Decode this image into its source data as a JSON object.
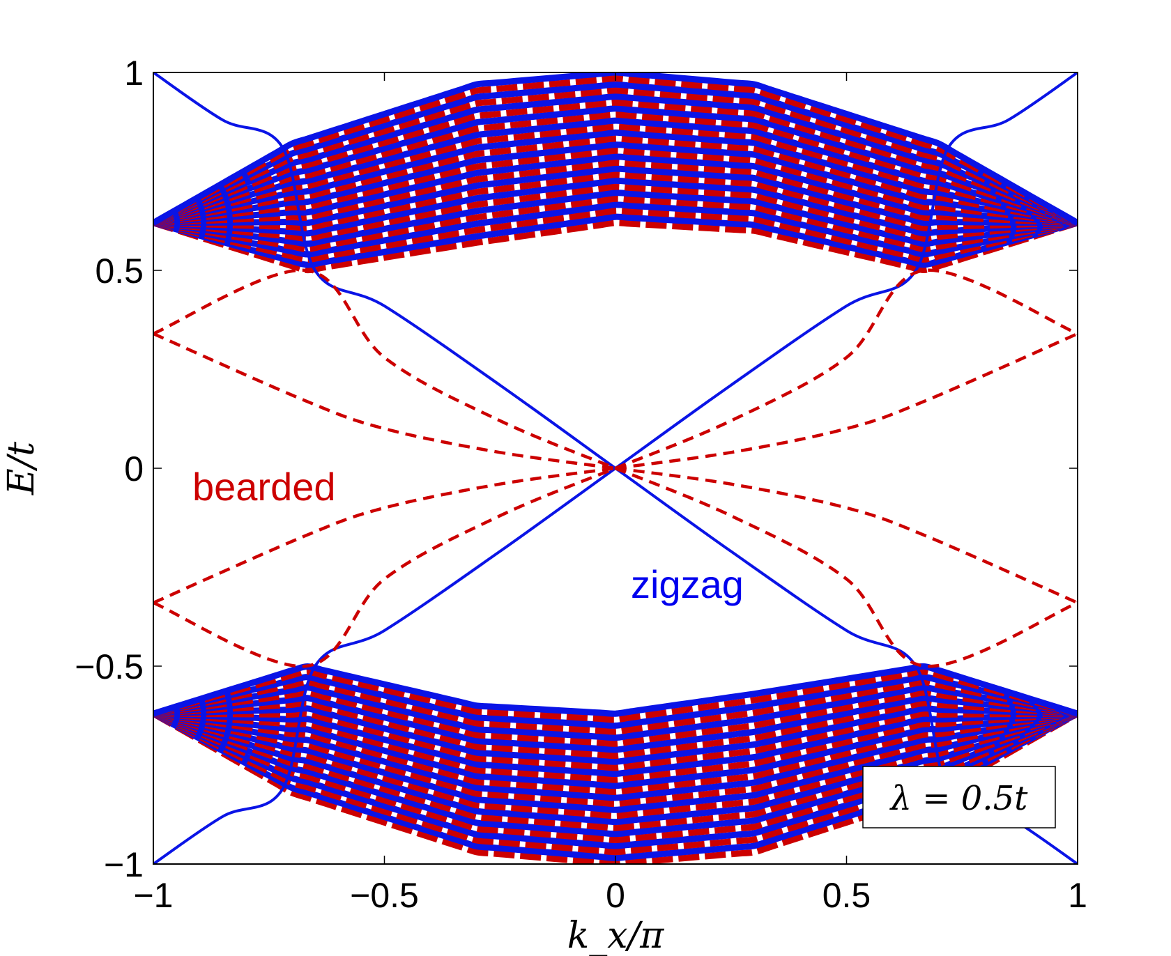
{
  "chart_data": {
    "type": "line",
    "title": "",
    "xlabel": "k_x/π",
    "ylabel": "E/t",
    "xlim": [
      -1,
      1
    ],
    "ylim": [
      -1,
      1
    ],
    "xticks": [
      -1,
      -0.5,
      0,
      0.5,
      1
    ],
    "yticks": [
      -1,
      -0.5,
      0,
      0.5,
      1
    ],
    "xtick_labels": [
      "−1",
      "−0.5",
      "0",
      "0.5",
      "1"
    ],
    "ytick_labels": [
      "−1",
      "−0.5",
      "0",
      "0.5",
      "1"
    ],
    "parameter_label": "λ = 0.5t",
    "annotations": [
      {
        "text": "bearded",
        "color": "#cc0000"
      },
      {
        "text": "zigzag",
        "color": "#0000ee"
      }
    ],
    "colors": {
      "zigzag": "#0a14e6",
      "bearded": "#cc0000"
    },
    "bulk_bands": {
      "upper": {
        "top_edge": [
          [
            -1,
            0.62
          ],
          [
            -0.7,
            0.82
          ],
          [
            -0.3,
            0.97
          ],
          [
            0,
            1.0
          ],
          [
            0.3,
            0.97
          ],
          [
            0.7,
            0.82
          ],
          [
            1,
            0.62
          ]
        ],
        "bottom_edge": [
          [
            -1,
            0.62
          ],
          [
            -0.67,
            0.5
          ],
          [
            -0.3,
            0.57
          ],
          [
            0,
            0.62
          ],
          [
            0.3,
            0.6
          ],
          [
            0.67,
            0.5
          ],
          [
            1,
            0.62
          ]
        ]
      },
      "lower": {
        "top_edge": [
          [
            -1,
            -0.62
          ],
          [
            -0.67,
            -0.5
          ],
          [
            -0.3,
            -0.6
          ],
          [
            0,
            -0.62
          ],
          [
            0.3,
            -0.57
          ],
          [
            0.67,
            -0.5
          ],
          [
            1,
            -0.62
          ]
        ],
        "bottom_edge": [
          [
            -1,
            -0.62
          ],
          [
            -0.7,
            -0.82
          ],
          [
            -0.3,
            -0.97
          ],
          [
            0,
            -1.0
          ],
          [
            0.3,
            -0.97
          ],
          [
            0.7,
            -0.82
          ],
          [
            1,
            -0.62
          ]
        ]
      }
    },
    "series": [
      {
        "name": "zigzag edge state 1",
        "style": "solid",
        "color": "#0a14e6",
        "x": [
          -1,
          -0.85,
          -0.72,
          -0.65,
          -0.5,
          -0.25,
          0,
          0.25,
          0.5,
          0.65,
          0.72,
          0.85,
          1
        ],
        "y": [
          1.0,
          0.88,
          0.81,
          0.5,
          0.41,
          0.21,
          0,
          -0.21,
          -0.41,
          -0.5,
          -0.81,
          -0.88,
          -1.0
        ]
      },
      {
        "name": "zigzag edge state 2",
        "style": "solid",
        "color": "#0a14e6",
        "x": [
          -1,
          -0.85,
          -0.72,
          -0.65,
          -0.5,
          -0.25,
          0,
          0.25,
          0.5,
          0.65,
          0.72,
          0.85,
          1
        ],
        "y": [
          -1.0,
          -0.88,
          -0.81,
          -0.5,
          -0.41,
          -0.21,
          0,
          0.21,
          0.41,
          0.5,
          0.81,
          0.88,
          1.0
        ]
      },
      {
        "name": "bearded edge state 1",
        "style": "dashed",
        "color": "#cc0000",
        "x": [
          -1,
          -0.67,
          -0.5,
          -0.25,
          0
        ],
        "y": [
          0.34,
          0.5,
          0.28,
          0.12,
          0
        ]
      },
      {
        "name": "bearded edge state 2",
        "style": "dashed",
        "color": "#cc0000",
        "x": [
          -1,
          -0.67,
          -0.5,
          -0.25,
          0
        ],
        "y": [
          0.34,
          0.17,
          0.1,
          0.04,
          0
        ]
      },
      {
        "name": "bearded edge state 3",
        "style": "dashed",
        "color": "#cc0000",
        "x": [
          -1,
          -0.67,
          -0.5,
          -0.25,
          0
        ],
        "y": [
          -0.34,
          -0.5,
          -0.28,
          -0.12,
          0
        ]
      },
      {
        "name": "bearded edge state 4",
        "style": "dashed",
        "color": "#cc0000",
        "x": [
          -1,
          -0.67,
          -0.5,
          -0.25,
          0
        ],
        "y": [
          -0.34,
          -0.17,
          -0.1,
          -0.04,
          0
        ]
      },
      {
        "name": "bearded edge state 5",
        "style": "dashed",
        "color": "#cc0000",
        "x": [
          0,
          0.25,
          0.5,
          0.67,
          1
        ],
        "y": [
          0,
          0.04,
          0.1,
          0.17,
          0.34
        ]
      },
      {
        "name": "bearded edge state 6",
        "style": "dashed",
        "color": "#cc0000",
        "x": [
          0,
          0.25,
          0.5,
          0.67,
          1
        ],
        "y": [
          0,
          0.12,
          0.28,
          0.5,
          0.34
        ]
      },
      {
        "name": "bearded edge state 7",
        "style": "dashed",
        "color": "#cc0000",
        "x": [
          0,
          0.25,
          0.5,
          0.67,
          1
        ],
        "y": [
          0,
          -0.04,
          -0.1,
          -0.17,
          -0.34
        ]
      },
      {
        "name": "bearded edge state 8",
        "style": "dashed",
        "color": "#cc0000",
        "x": [
          0,
          0.25,
          0.5,
          0.67,
          1
        ],
        "y": [
          0,
          -0.12,
          -0.28,
          -0.5,
          -0.34
        ]
      }
    ]
  }
}
